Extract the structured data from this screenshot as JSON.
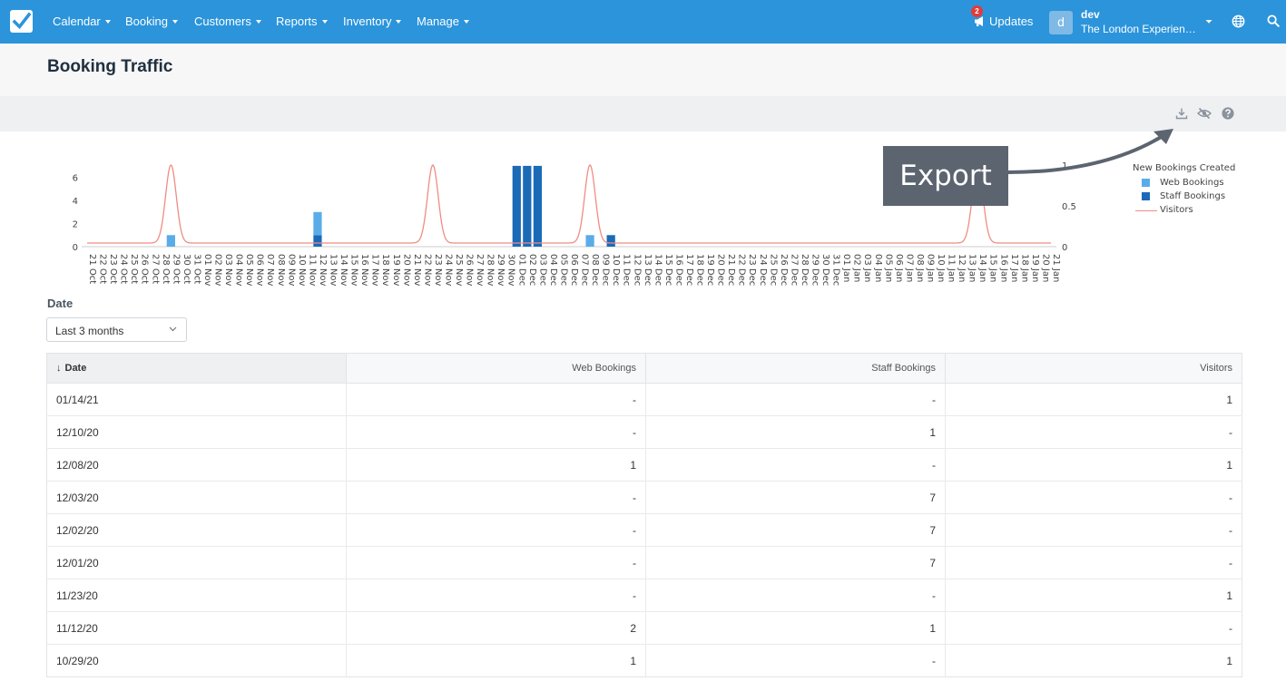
{
  "nav": {
    "items": [
      {
        "label": "Calendar"
      },
      {
        "label": "Booking"
      },
      {
        "label": "Customers"
      },
      {
        "label": "Reports"
      },
      {
        "label": "Inventory"
      },
      {
        "label": "Manage"
      }
    ],
    "updates_label": "Updates",
    "updates_count": "2",
    "user_initial": "d",
    "user_name": "dev",
    "user_company": "The London Experience Ltd"
  },
  "page": {
    "title": "Booking Traffic"
  },
  "toolbar": {
    "icons": [
      "download-icon",
      "eye-off-icon",
      "help-icon"
    ]
  },
  "callout": {
    "text": "Export"
  },
  "filter": {
    "label": "Date",
    "value": "Last 3 months"
  },
  "colors": {
    "nav": "#2b94db",
    "web": "#5aace8",
    "staff": "#1a6ab8",
    "visitors": "#f08c84"
  },
  "chart_data": {
    "type": "bar",
    "legend_title": "New Bookings Created",
    "legend_placement": "right",
    "series": [
      {
        "name": "Web Bookings",
        "kind": "bar"
      },
      {
        "name": "Staff Bookings",
        "kind": "bar"
      },
      {
        "name": "Visitors",
        "kind": "line"
      }
    ],
    "start_date": "2020-10-21",
    "end_date": "2021-01-21",
    "categories": [
      "21 Oct",
      "22 Oct",
      "23 Oct",
      "24 Oct",
      "25 Oct",
      "26 Oct",
      "27 Oct",
      "28 Oct",
      "29 Oct",
      "30 Oct",
      "31 Oct",
      "01 Nov",
      "02 Nov",
      "03 Nov",
      "04 Nov",
      "05 Nov",
      "06 Nov",
      "07 Nov",
      "08 Nov",
      "09 Nov",
      "10 Nov",
      "11 Nov",
      "12 Nov",
      "13 Nov",
      "14 Nov",
      "15 Nov",
      "16 Nov",
      "17 Nov",
      "18 Nov",
      "19 Nov",
      "20 Nov",
      "21 Nov",
      "22 Nov",
      "23 Nov",
      "24 Nov",
      "25 Nov",
      "26 Nov",
      "27 Nov",
      "28 Nov",
      "29 Nov",
      "30 Nov",
      "01 Dec",
      "02 Dec",
      "03 Dec",
      "04 Dec",
      "05 Dec",
      "06 Dec",
      "07 Dec",
      "08 Dec",
      "09 Dec",
      "10 Dec",
      "11 Dec",
      "12 Dec",
      "13 Dec",
      "14 Dec",
      "15 Dec",
      "16 Dec",
      "17 Dec",
      "18 Dec",
      "19 Dec",
      "20 Dec",
      "21 Dec",
      "22 Dec",
      "23 Dec",
      "24 Dec",
      "25 Dec",
      "26 Dec",
      "27 Dec",
      "28 Dec",
      "29 Dec",
      "30 Dec",
      "31 Dec",
      "01 Jan",
      "02 Jan",
      "03 Jan",
      "04 Jan",
      "05 Jan",
      "06 Jan",
      "07 Jan",
      "08 Jan",
      "09 Jan",
      "10 Jan",
      "11 Jan",
      "12 Jan",
      "13 Jan",
      "14 Jan",
      "15 Jan",
      "16 Jan",
      "17 Jan",
      "18 Jan",
      "19 Jan",
      "20 Jan",
      "21 Jan"
    ],
    "web_bookings": {
      "29 Oct": 1,
      "12 Nov": 2,
      "08 Dec": 1
    },
    "staff_bookings": {
      "12 Nov": 1,
      "01 Dec": 7,
      "02 Dec": 7,
      "03 Dec": 7,
      "10 Dec": 1
    },
    "visitors": {
      "29 Oct": 1,
      "23 Nov": 1,
      "08 Dec": 1,
      "14 Jan": 1
    },
    "y_left": {
      "ticks": [
        0,
        2,
        4,
        6
      ],
      "range": [
        0,
        7
      ]
    },
    "y_right": {
      "ticks": [
        0,
        0.5,
        1
      ],
      "range": [
        0,
        1
      ]
    },
    "grid": false
  },
  "table": {
    "headers": [
      "Date",
      "Web Bookings",
      "Staff Bookings",
      "Visitors"
    ],
    "sort_column": "Date",
    "rows": [
      [
        "01/14/21",
        "-",
        "-",
        "1"
      ],
      [
        "12/10/20",
        "-",
        "1",
        "-"
      ],
      [
        "12/08/20",
        "1",
        "-",
        "1"
      ],
      [
        "12/03/20",
        "-",
        "7",
        "-"
      ],
      [
        "12/02/20",
        "-",
        "7",
        "-"
      ],
      [
        "12/01/20",
        "-",
        "7",
        "-"
      ],
      [
        "11/23/20",
        "-",
        "-",
        "1"
      ],
      [
        "11/12/20",
        "2",
        "1",
        "-"
      ],
      [
        "10/29/20",
        "1",
        "-",
        "1"
      ]
    ]
  }
}
